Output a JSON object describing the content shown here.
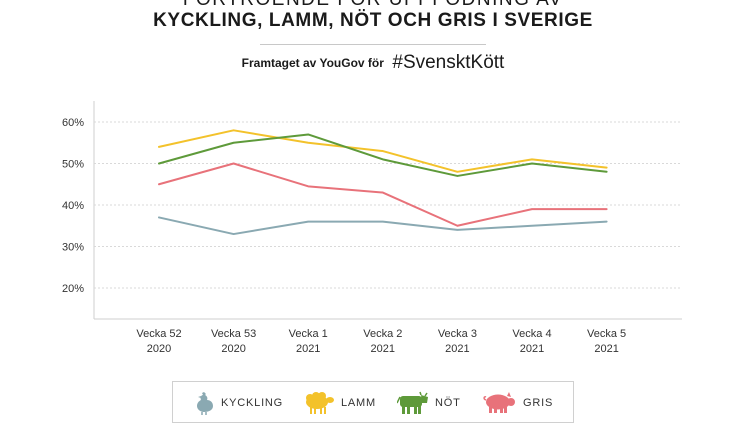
{
  "header": {
    "title_line1": "FÖRTROENDE FÖR UPPFÖDNING AV",
    "title_line2": "KYCKLING, LAMM, NÖT OCH GRIS I SVERIGE",
    "subtitle": "Framtaget av YouGov för",
    "hashtag": "#SvensktKött"
  },
  "chart_data": {
    "type": "line",
    "categories": [
      "Vecka 52\n2020",
      "Vecka 53\n2020",
      "Vecka 1\n2021",
      "Vecka 2\n2021",
      "Vecka 3\n2021",
      "Vecka 4\n2021",
      "Vecka 5\n2021"
    ],
    "yticks": [
      "20%",
      "30%",
      "40%",
      "50%",
      "60%"
    ],
    "ylim": [
      15,
      65
    ],
    "grid": true,
    "legend": "bottom",
    "series": [
      {
        "name": "KYCKLING",
        "color": "#8aa9b2",
        "values": [
          37,
          33,
          36,
          36,
          34,
          35,
          36
        ]
      },
      {
        "name": "LAMM",
        "color": "#f3c22b",
        "values": [
          54,
          58,
          55,
          53,
          48,
          51,
          49
        ]
      },
      {
        "name": "NÖT",
        "color": "#5e9a3a",
        "values": [
          50,
          55,
          57,
          51,
          47,
          50,
          48
        ]
      },
      {
        "name": "GRIS",
        "color": "#e8727a",
        "values": [
          45,
          50,
          44.5,
          43,
          35,
          39,
          39
        ]
      }
    ]
  },
  "legend": {
    "items": [
      {
        "label": "KYCKLING",
        "icon": "chicken-icon",
        "color": "#8aa9b2"
      },
      {
        "label": "LAMM",
        "icon": "sheep-icon",
        "color": "#f3c22b"
      },
      {
        "label": "NÖT",
        "icon": "cow-icon",
        "color": "#5e9a3a"
      },
      {
        "label": "GRIS",
        "icon": "pig-icon",
        "color": "#e8727a"
      }
    ]
  }
}
